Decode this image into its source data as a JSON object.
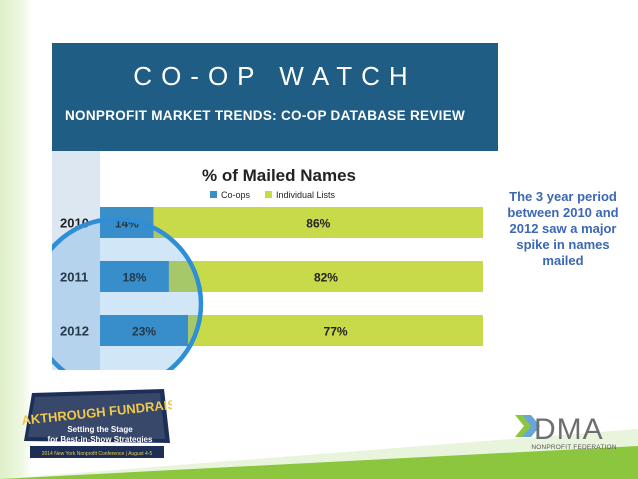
{
  "slide": {
    "title": "CO-OP WATCH",
    "subtitle": "NONPROFIT MARKET TRENDS: CO-OP DATABASE REVIEW"
  },
  "note": "The 3 year period between 2010 and 2012 saw a major spike in names mailed",
  "badge": {
    "line1": "BREAKTHROUGH FUNDRAISING",
    "line2": "Setting the Stage",
    "line3": "for Best-in-Show Strategies",
    "line4": "2014 New York Nonprofit Conference | August 4-5"
  },
  "dma": {
    "name": "DMA",
    "sub": "NONPROFIT FEDERATION"
  },
  "colors": {
    "header": "#1f5d84",
    "coops": "#3a8fc7",
    "individual": "#c8d94a",
    "circle": "#2e8fd6",
    "note": "#3b67b5",
    "stripe_green": "#8cc63f"
  },
  "chart_data": {
    "type": "bar",
    "orientation": "horizontal",
    "stacked": true,
    "title": "% of Mailed Names",
    "categories": [
      "2010",
      "2011",
      "2012"
    ],
    "series": [
      {
        "name": "Co-ops",
        "values": [
          14,
          18,
          23
        ],
        "labels": [
          "14%",
          "18%",
          "23%"
        ]
      },
      {
        "name": "Individual Lists",
        "values": [
          86,
          82,
          77
        ],
        "labels": [
          "86%",
          "82%",
          "77%"
        ]
      }
    ],
    "xlim": [
      0,
      100
    ],
    "legend": "top",
    "grid": false
  }
}
